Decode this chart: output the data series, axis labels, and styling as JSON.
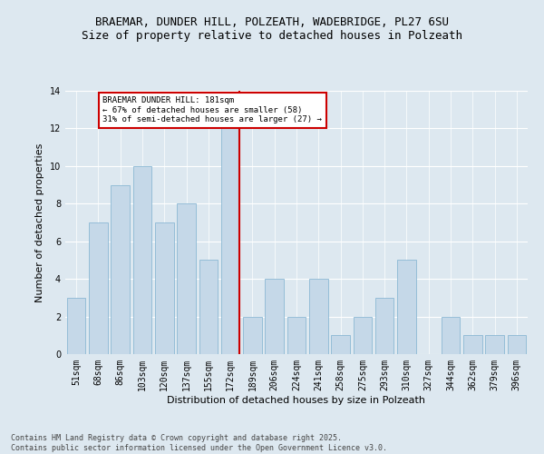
{
  "title": "BRAEMAR, DUNDER HILL, POLZEATH, WADEBRIDGE, PL27 6SU",
  "subtitle": "Size of property relative to detached houses in Polzeath",
  "xlabel": "Distribution of detached houses by size in Polzeath",
  "ylabel": "Number of detached properties",
  "categories": [
    "51sqm",
    "68sqm",
    "86sqm",
    "103sqm",
    "120sqm",
    "137sqm",
    "155sqm",
    "172sqm",
    "189sqm",
    "206sqm",
    "224sqm",
    "241sqm",
    "258sqm",
    "275sqm",
    "293sqm",
    "310sqm",
    "327sqm",
    "344sqm",
    "362sqm",
    "379sqm",
    "396sqm"
  ],
  "values": [
    3,
    7,
    9,
    10,
    7,
    8,
    5,
    12,
    2,
    4,
    2,
    4,
    1,
    2,
    3,
    5,
    0,
    2,
    1,
    1,
    1
  ],
  "bar_color": "#c5d8e8",
  "bar_edge_color": "#8bb8d4",
  "reference_line_x": 7,
  "reference_line_label": "BRAEMAR DUNDER HILL: 181sqm",
  "annotation_line1": "← 67% of detached houses are smaller (58)",
  "annotation_line2": "31% of semi-detached houses are larger (27) →",
  "annotation_box_color": "#ffffff",
  "annotation_box_edge_color": "#cc0000",
  "vline_color": "#cc0000",
  "ylim": [
    0,
    14
  ],
  "yticks": [
    0,
    2,
    4,
    6,
    8,
    10,
    12,
    14
  ],
  "background_color": "#dde8f0",
  "footer": "Contains HM Land Registry data © Crown copyright and database right 2025.\nContains public sector information licensed under the Open Government Licence v3.0.",
  "title_fontsize": 9,
  "subtitle_fontsize": 9,
  "tick_fontsize": 7,
  "ylabel_fontsize": 8,
  "xlabel_fontsize": 8,
  "footer_fontsize": 6
}
